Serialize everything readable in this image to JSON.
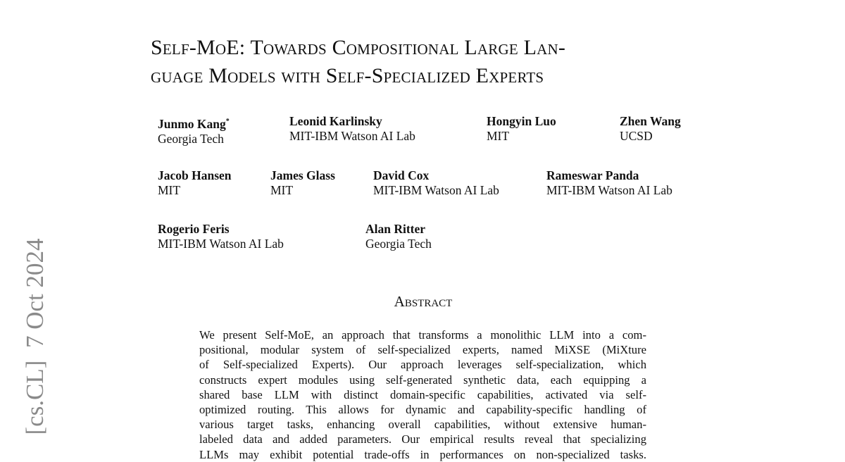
{
  "arxiv_stamp": {
    "category": "[cs.CL]",
    "date": "7 Oct 2024"
  },
  "title": {
    "lines": [
      "Self-MoE: Towards Compositional Large Lan-",
      "guage Models with Self-Specialized Experts"
    ]
  },
  "authors": [
    {
      "name": "Junmo Kang",
      "mark": "*",
      "affiliation": "Georgia Tech"
    },
    {
      "name": "Leonid Karlinsky",
      "affiliation": "MIT-IBM Watson AI Lab"
    },
    {
      "name": "Hongyin Luo",
      "affiliation": "MIT"
    },
    {
      "name": "Zhen Wang",
      "affiliation": "UCSD"
    },
    {
      "name": "Jacob Hansen",
      "affiliation": "MIT"
    },
    {
      "name": "James Glass",
      "affiliation": "MIT"
    },
    {
      "name": "David Cox",
      "affiliation": "MIT-IBM Watson AI Lab"
    },
    {
      "name": "Rameswar Panda",
      "affiliation": "MIT-IBM Watson AI Lab"
    },
    {
      "name": "Rogerio Feris",
      "affiliation": "MIT-IBM Watson AI Lab"
    },
    {
      "name": "Alan Ritter",
      "affiliation": "Georgia Tech"
    }
  ],
  "abstract": {
    "heading": "Abstract",
    "lines": [
      "We present Self-MoE, an approach that transforms a monolithic LLM into a com-",
      "positional, modular system of self-specialized experts, named MiXSE (MiXture",
      "of Self-specialized Experts).  Our approach leverages self-specialization, which",
      "constructs expert modules using self-generated synthetic data, each equipping a",
      "shared base LLM with distinct domain-specific capabilities, activated via self-",
      "optimized routing.  This allows for dynamic and capability-specific handling of",
      "various target tasks, enhancing overall capabilities, without extensive human-",
      "labeled data and added parameters. Our empirical results reveal that specializing",
      "LLMs may exhibit potential trade-offs in performances on non-specialized tasks."
    ]
  }
}
